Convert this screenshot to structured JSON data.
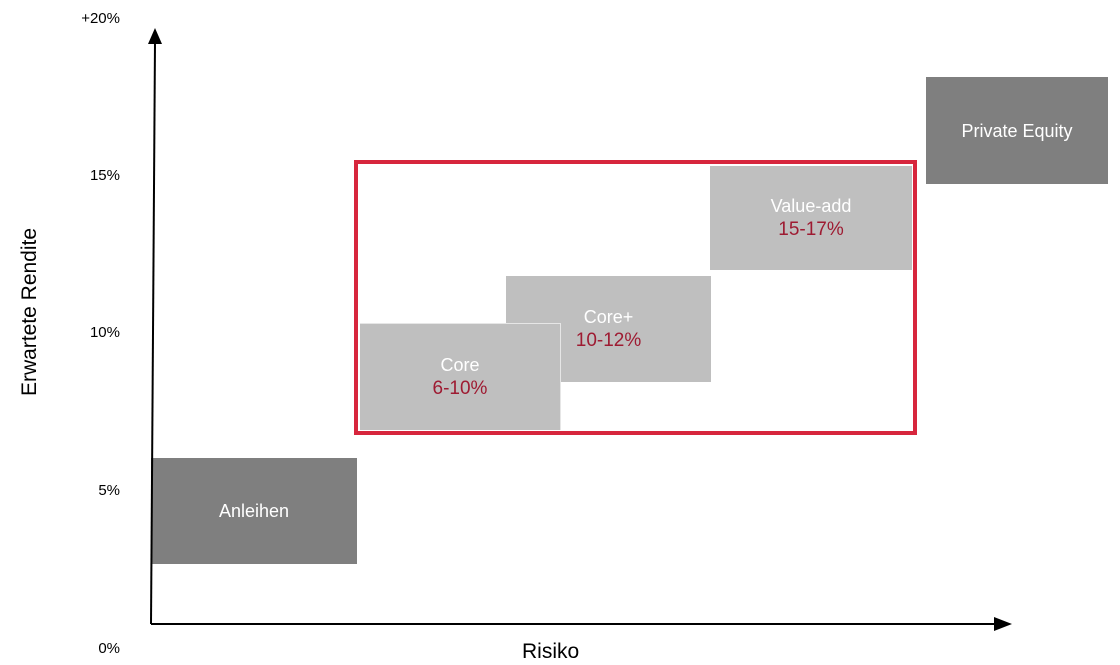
{
  "y_axis": {
    "label": "Erwartete Rendite",
    "ticks": [
      "+20%",
      "15%",
      "10%",
      "5%",
      "0%"
    ]
  },
  "x_axis": {
    "label": "Risiko"
  },
  "categories": [
    {
      "name": "Anleihen",
      "range": ""
    },
    {
      "name": "Core",
      "range": "6-10%"
    },
    {
      "name": "Core+",
      "range": "10-12%"
    },
    {
      "name": "Value-add",
      "range": "15-17%"
    },
    {
      "name": "Private Equity",
      "range": ""
    }
  ],
  "colors": {
    "dark_box": "#7f7f7f",
    "light_box": "#bfbfbf",
    "highlight_border": "#d7263d",
    "range_text": "#9e1b32",
    "axis": "#000000"
  }
}
